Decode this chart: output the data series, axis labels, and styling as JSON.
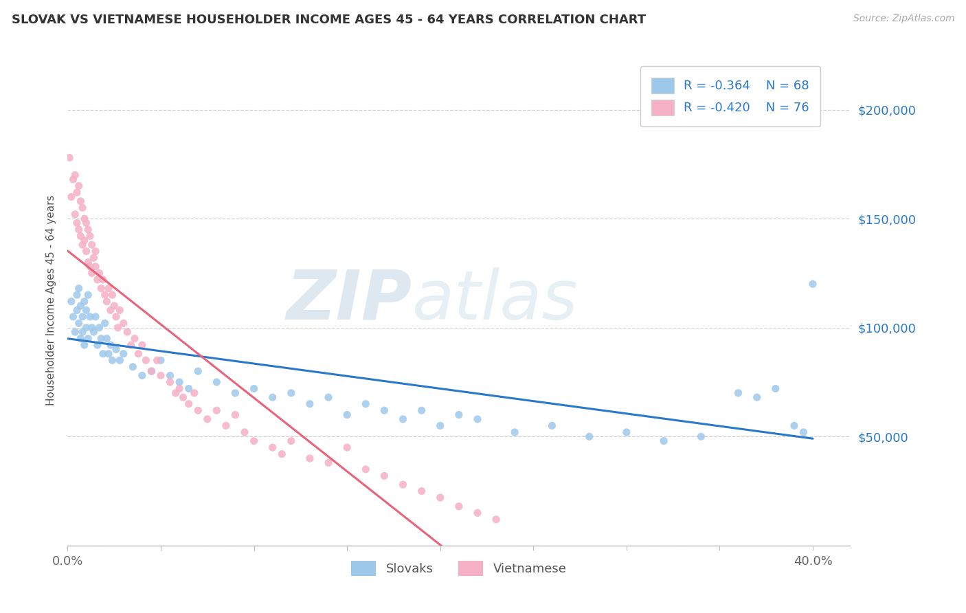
{
  "title": "SLOVAK VS VIETNAMESE HOUSEHOLDER INCOME AGES 45 - 64 YEARS CORRELATION CHART",
  "source": "Source: ZipAtlas.com",
  "ylabel": "Householder Income Ages 45 - 64 years",
  "xlim": [
    0.0,
    0.42
  ],
  "ylim": [
    0,
    225000
  ],
  "xtick_vals": [
    0.0,
    0.05,
    0.1,
    0.15,
    0.2,
    0.25,
    0.3,
    0.35,
    0.4
  ],
  "ytick_vals": [
    0,
    50000,
    100000,
    150000,
    200000
  ],
  "ytick_labels_right": [
    "",
    "$50,000",
    "$100,000",
    "$150,000",
    "$200,000"
  ],
  "slovak_color": "#9ec8ea",
  "vietnamese_color": "#f5b0c5",
  "slovak_line_color": "#2979c8",
  "vietnamese_line_color": "#e8647a",
  "watermark_zip": "ZIP",
  "watermark_atlas": "atlas",
  "legend_R_slovak": "-0.364",
  "legend_N_slovak": "68",
  "legend_R_vietnamese": "-0.420",
  "legend_N_vietnamese": "76",
  "slovak_x": [
    0.002,
    0.003,
    0.004,
    0.005,
    0.005,
    0.006,
    0.006,
    0.007,
    0.007,
    0.008,
    0.008,
    0.009,
    0.009,
    0.01,
    0.01,
    0.011,
    0.011,
    0.012,
    0.013,
    0.014,
    0.015,
    0.016,
    0.017,
    0.018,
    0.019,
    0.02,
    0.021,
    0.022,
    0.023,
    0.024,
    0.026,
    0.028,
    0.03,
    0.035,
    0.04,
    0.045,
    0.05,
    0.055,
    0.06,
    0.065,
    0.07,
    0.08,
    0.09,
    0.1,
    0.11,
    0.12,
    0.13,
    0.14,
    0.15,
    0.16,
    0.17,
    0.18,
    0.19,
    0.2,
    0.21,
    0.22,
    0.24,
    0.26,
    0.28,
    0.3,
    0.32,
    0.34,
    0.36,
    0.37,
    0.38,
    0.39,
    0.395,
    0.4
  ],
  "slovak_y": [
    112000,
    105000,
    98000,
    115000,
    108000,
    102000,
    118000,
    95000,
    110000,
    105000,
    98000,
    112000,
    92000,
    108000,
    100000,
    115000,
    95000,
    105000,
    100000,
    98000,
    105000,
    92000,
    100000,
    95000,
    88000,
    102000,
    95000,
    88000,
    92000,
    85000,
    90000,
    85000,
    88000,
    82000,
    78000,
    80000,
    85000,
    78000,
    75000,
    72000,
    80000,
    75000,
    70000,
    72000,
    68000,
    70000,
    65000,
    68000,
    60000,
    65000,
    62000,
    58000,
    62000,
    55000,
    60000,
    58000,
    52000,
    55000,
    50000,
    52000,
    48000,
    50000,
    70000,
    68000,
    72000,
    55000,
    52000,
    120000
  ],
  "vietnamese_x": [
    0.001,
    0.002,
    0.003,
    0.004,
    0.004,
    0.005,
    0.005,
    0.006,
    0.006,
    0.007,
    0.007,
    0.008,
    0.008,
    0.009,
    0.009,
    0.01,
    0.01,
    0.011,
    0.011,
    0.012,
    0.012,
    0.013,
    0.013,
    0.014,
    0.015,
    0.015,
    0.016,
    0.017,
    0.018,
    0.019,
    0.02,
    0.021,
    0.022,
    0.023,
    0.024,
    0.025,
    0.026,
    0.027,
    0.028,
    0.03,
    0.032,
    0.034,
    0.036,
    0.038,
    0.04,
    0.042,
    0.045,
    0.048,
    0.05,
    0.055,
    0.058,
    0.06,
    0.062,
    0.065,
    0.068,
    0.07,
    0.075,
    0.08,
    0.085,
    0.09,
    0.095,
    0.1,
    0.11,
    0.115,
    0.12,
    0.13,
    0.14,
    0.15,
    0.16,
    0.17,
    0.18,
    0.19,
    0.2,
    0.21,
    0.22,
    0.23
  ],
  "vietnamese_y": [
    178000,
    160000,
    168000,
    152000,
    170000,
    148000,
    162000,
    145000,
    165000,
    142000,
    158000,
    138000,
    155000,
    140000,
    150000,
    135000,
    148000,
    130000,
    145000,
    128000,
    142000,
    125000,
    138000,
    132000,
    128000,
    135000,
    122000,
    125000,
    118000,
    122000,
    115000,
    112000,
    118000,
    108000,
    115000,
    110000,
    105000,
    100000,
    108000,
    102000,
    98000,
    92000,
    95000,
    88000,
    92000,
    85000,
    80000,
    85000,
    78000,
    75000,
    70000,
    72000,
    68000,
    65000,
    70000,
    62000,
    58000,
    62000,
    55000,
    60000,
    52000,
    48000,
    45000,
    42000,
    48000,
    40000,
    38000,
    45000,
    35000,
    32000,
    28000,
    25000,
    22000,
    18000,
    15000,
    12000
  ]
}
